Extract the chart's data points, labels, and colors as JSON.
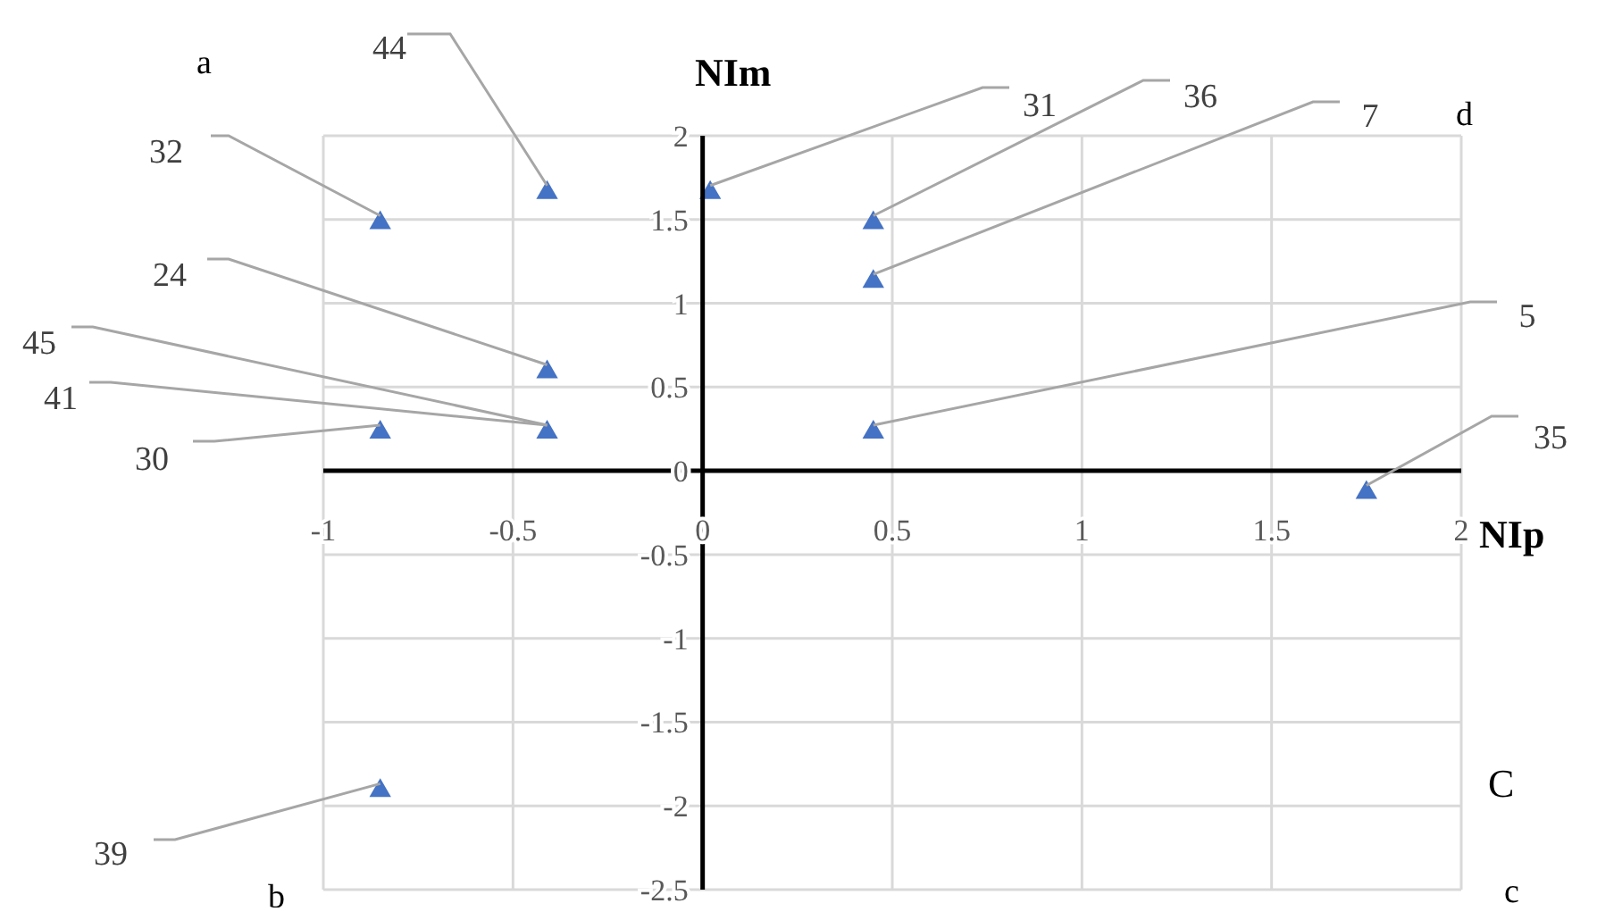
{
  "chart_data": {
    "type": "scatter",
    "xlabel": "NIp",
    "ylabel": "NIm",
    "x": [
      -0.85,
      -0.41,
      0.02,
      0.45,
      0.45,
      -0.41,
      -0.41,
      -0.85,
      0.45,
      1.75,
      -0.85
    ],
    "values": [
      1.48,
      1.66,
      1.66,
      1.48,
      1.13,
      0.59,
      0.23,
      0.23,
      0.23,
      -0.13,
      -1.91
    ],
    "color": "#4472c4",
    "marker": "triangle",
    "xlim": [
      -1,
      2
    ],
    "xticks": [
      -1,
      -0.5,
      0,
      0.5,
      1,
      1.5,
      2
    ],
    "ylim": [
      -2.5,
      2
    ],
    "yticks": [
      -2.5,
      -2,
      -1.5,
      -1,
      -0.5,
      0,
      0.5,
      1,
      1.5,
      2
    ],
    "grid": true,
    "legend": false,
    "annotations": [
      {
        "text": "32",
        "x": -0.85,
        "y": 1.48
      },
      {
        "text": "44",
        "x": -0.41,
        "y": 1.66
      },
      {
        "text": "31",
        "x": 0.02,
        "y": 1.66
      },
      {
        "text": "36",
        "x": 0.45,
        "y": 1.48
      },
      {
        "text": "7",
        "x": 0.45,
        "y": 1.13
      },
      {
        "text": "24",
        "x": -0.41,
        "y": 0.59
      },
      {
        "text": "45",
        "x": -0.41,
        "y": 0.23
      },
      {
        "text": "41",
        "x": -0.41,
        "y": 0.23
      },
      {
        "text": "30",
        "x": -0.85,
        "y": 0.23
      },
      {
        "text": "5",
        "x": 0.45,
        "y": 0.23
      },
      {
        "text": "35",
        "x": 1.75,
        "y": -0.13
      },
      {
        "text": "39",
        "x": -0.85,
        "y": -1.91
      },
      "a",
      "d",
      "C",
      "b",
      "c"
    ]
  }
}
